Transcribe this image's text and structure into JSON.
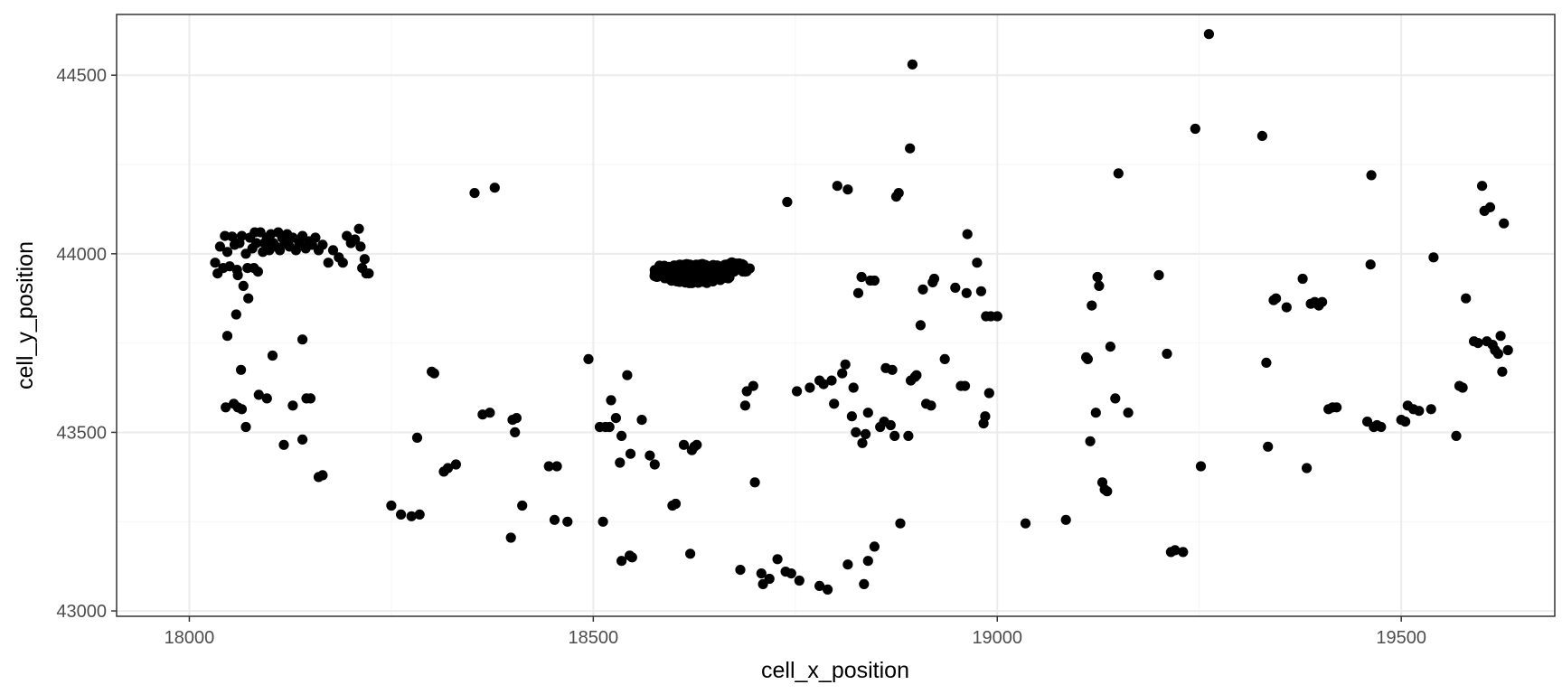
{
  "chart_data": {
    "type": "scatter",
    "title": "",
    "xlabel": "cell_x_position",
    "ylabel": "cell_y_position",
    "xlim": [
      17910,
      19690
    ],
    "ylim": [
      42985,
      44670
    ],
    "x_ticks": [
      18000,
      18500,
      19000,
      19500
    ],
    "x_tick_labels": [
      "18000",
      "18500",
      "19000",
      "19500"
    ],
    "y_ticks": [
      43000,
      43500,
      44000,
      44500
    ],
    "y_tick_labels": [
      "43000",
      "43500",
      "44000",
      "44500"
    ],
    "grid": true,
    "legend": "none",
    "colors": {
      "points": "#000000",
      "grid_major": "#ebebeb",
      "grid_minor": "#f5f5f5",
      "panel_border": "#333333"
    },
    "points": [
      [
        18035,
        43945
      ],
      [
        18038,
        44020
      ],
      [
        18042,
        43960
      ],
      [
        18044,
        44050
      ],
      [
        18047,
        44005
      ],
      [
        18050,
        43965
      ],
      [
        18053,
        44048
      ],
      [
        18056,
        44025
      ],
      [
        18059,
        43955
      ],
      [
        18062,
        44030
      ],
      [
        18065,
        44050
      ],
      [
        18067,
        43910
      ],
      [
        18070,
        44000
      ],
      [
        18072,
        43960
      ],
      [
        18075,
        44045
      ],
      [
        18078,
        44015
      ],
      [
        18080,
        43960
      ],
      [
        18083,
        44030
      ],
      [
        18085,
        43950
      ],
      [
        18088,
        44060
      ],
      [
        18091,
        44005
      ],
      [
        18093,
        44030
      ],
      [
        18096,
        44045
      ],
      [
        18099,
        44010
      ],
      [
        18101,
        44055
      ],
      [
        18104,
        44030
      ],
      [
        18107,
        44020
      ],
      [
        18110,
        44060
      ],
      [
        18112,
        44010
      ],
      [
        18115,
        44045
      ],
      [
        18118,
        44030
      ],
      [
        18121,
        44055
      ],
      [
        18124,
        44020
      ],
      [
        18128,
        44045
      ],
      [
        18132,
        44010
      ],
      [
        18136,
        44030
      ],
      [
        18140,
        44050
      ],
      [
        18144,
        44015
      ],
      [
        18148,
        44035
      ],
      [
        18152,
        44025
      ],
      [
        18156,
        44045
      ],
      [
        18160,
        44010
      ],
      [
        18165,
        44025
      ],
      [
        18172,
        43975
      ],
      [
        18178,
        44010
      ],
      [
        18185,
        43990
      ],
      [
        18190,
        43975
      ],
      [
        18195,
        44050
      ],
      [
        18200,
        44030
      ],
      [
        18205,
        44040
      ],
      [
        18210,
        44070
      ],
      [
        18212,
        44020
      ],
      [
        18214,
        43960
      ],
      [
        18217,
        43985
      ],
      [
        18219,
        43945
      ],
      [
        18222,
        43945
      ],
      [
        18032,
        43975
      ],
      [
        18060,
        43940
      ],
      [
        18081,
        44060
      ],
      [
        18140,
        43760
      ],
      [
        18047,
        43770
      ],
      [
        18058,
        43830
      ],
      [
        18064,
        43675
      ],
      [
        18073,
        43875
      ],
      [
        18096,
        43595
      ],
      [
        18103,
        43715
      ],
      [
        18086,
        43605
      ],
      [
        18060,
        43570
      ],
      [
        18045,
        43570
      ],
      [
        18070,
        43515
      ],
      [
        18055,
        43580
      ],
      [
        18065,
        43565
      ],
      [
        18117,
        43465
      ],
      [
        18128,
        43575
      ],
      [
        18140,
        43480
      ],
      [
        18145,
        43595
      ],
      [
        18150,
        43595
      ],
      [
        18160,
        43375
      ],
      [
        18165,
        43380
      ],
      [
        18250,
        43295
      ],
      [
        18262,
        43270
      ],
      [
        18275,
        43265
      ],
      [
        18285,
        43270
      ],
      [
        18282,
        43485
      ],
      [
        18300,
        43670
      ],
      [
        18303,
        43665
      ],
      [
        18315,
        43390
      ],
      [
        18320,
        43400
      ],
      [
        18330,
        43410
      ],
      [
        18353,
        44170
      ],
      [
        18363,
        43550
      ],
      [
        18372,
        43555
      ],
      [
        18378,
        44185
      ],
      [
        18400,
        43535
      ],
      [
        18405,
        43540
      ],
      [
        18403,
        43500
      ],
      [
        18398,
        43205
      ],
      [
        18412,
        43295
      ],
      [
        18445,
        43405
      ],
      [
        18452,
        43255
      ],
      [
        18455,
        43405
      ],
      [
        18468,
        43250
      ],
      [
        18494,
        43705
      ],
      [
        18508,
        43515
      ],
      [
        18515,
        43515
      ],
      [
        18520,
        43515
      ],
      [
        18512,
        43250
      ],
      [
        18522,
        43590
      ],
      [
        18528,
        43540
      ],
      [
        18533,
        43415
      ],
      [
        18535,
        43490
      ],
      [
        18542,
        43660
      ],
      [
        18546,
        43440
      ],
      [
        18545,
        43155
      ],
      [
        18548,
        43150
      ],
      [
        18535,
        43140
      ],
      [
        18560,
        43535
      ],
      [
        18570,
        43435
      ],
      [
        18576,
        43410
      ],
      [
        18598,
        43295
      ],
      [
        18602,
        43300
      ],
      [
        18612,
        43465
      ],
      [
        18622,
        43450
      ],
      [
        18625,
        43460
      ],
      [
        18628,
        43465
      ],
      [
        18620,
        43160
      ],
      [
        18688,
        43575
      ],
      [
        18690,
        43615
      ],
      [
        18698,
        43630
      ],
      [
        18700,
        43360
      ],
      [
        18682,
        43115
      ],
      [
        18708,
        43105
      ],
      [
        18710,
        43075
      ],
      [
        18718,
        43090
      ],
      [
        18728,
        43145
      ],
      [
        18738,
        43110
      ],
      [
        18745,
        43105
      ],
      [
        18755,
        43085
      ],
      [
        18740,
        44145
      ],
      [
        18752,
        43615
      ],
      [
        18768,
        43625
      ],
      [
        18780,
        43645
      ],
      [
        18785,
        43635
      ],
      [
        18795,
        43645
      ],
      [
        18798,
        43580
      ],
      [
        18802,
        44190
      ],
      [
        18808,
        43665
      ],
      [
        18812,
        43690
      ],
      [
        18815,
        44180
      ],
      [
        18820,
        43545
      ],
      [
        18822,
        43625
      ],
      [
        18825,
        43500
      ],
      [
        18828,
        43890
      ],
      [
        18832,
        43935
      ],
      [
        18833,
        43470
      ],
      [
        18837,
        43495
      ],
      [
        18840,
        43555
      ],
      [
        18843,
        43925
      ],
      [
        18848,
        43925
      ],
      [
        18855,
        43515
      ],
      [
        18860,
        43530
      ],
      [
        18862,
        43680
      ],
      [
        18868,
        43520
      ],
      [
        18870,
        43675
      ],
      [
        18873,
        43490
      ],
      [
        18875,
        44160
      ],
      [
        18878,
        44170
      ],
      [
        18880,
        43245
      ],
      [
        18890,
        43490
      ],
      [
        18893,
        43645
      ],
      [
        18898,
        43655
      ],
      [
        18900,
        43660
      ],
      [
        18892,
        44295
      ],
      [
        18895,
        44530
      ],
      [
        18905,
        43800
      ],
      [
        18908,
        43900
      ],
      [
        18912,
        43580
      ],
      [
        18918,
        43575
      ],
      [
        18920,
        43920
      ],
      [
        18922,
        43930
      ],
      [
        18935,
        43705
      ],
      [
        18948,
        43905
      ],
      [
        18955,
        43630
      ],
      [
        18960,
        43630
      ],
      [
        18962,
        43890
      ],
      [
        18963,
        44055
      ],
      [
        18975,
        43975
      ],
      [
        18980,
        43895
      ],
      [
        18983,
        43525
      ],
      [
        18985,
        43545
      ],
      [
        18986,
        43825
      ],
      [
        18990,
        43610
      ],
      [
        18992,
        43825
      ],
      [
        19000,
        43825
      ],
      [
        18848,
        43180
      ],
      [
        18840,
        43140
      ],
      [
        18835,
        43075
      ],
      [
        18815,
        43130
      ],
      [
        18790,
        43060
      ],
      [
        18780,
        43070
      ],
      [
        19035,
        43245
      ],
      [
        19085,
        43255
      ],
      [
        19110,
        43710
      ],
      [
        19112,
        43705
      ],
      [
        19115,
        43475
      ],
      [
        19117,
        43855
      ],
      [
        19122,
        43555
      ],
      [
        19124,
        43935
      ],
      [
        19126,
        43910
      ],
      [
        19130,
        43360
      ],
      [
        19133,
        43340
      ],
      [
        19136,
        43335
      ],
      [
        19140,
        43740
      ],
      [
        19146,
        43595
      ],
      [
        19150,
        44225
      ],
      [
        19162,
        43555
      ],
      [
        19200,
        43940
      ],
      [
        19210,
        43720
      ],
      [
        19215,
        43165
      ],
      [
        19220,
        43170
      ],
      [
        19230,
        43165
      ],
      [
        19245,
        44350
      ],
      [
        19252,
        43405
      ],
      [
        19262,
        44615
      ],
      [
        19328,
        44330
      ],
      [
        19333,
        43695
      ],
      [
        19335,
        43460
      ],
      [
        19342,
        43870
      ],
      [
        19345,
        43875
      ],
      [
        19358,
        43850
      ],
      [
        19378,
        43930
      ],
      [
        19383,
        43400
      ],
      [
        19388,
        43860
      ],
      [
        19393,
        43865
      ],
      [
        19398,
        43855
      ],
      [
        19402,
        43865
      ],
      [
        19410,
        43565
      ],
      [
        19415,
        43570
      ],
      [
        19420,
        43570
      ],
      [
        19458,
        43530
      ],
      [
        19462,
        43970
      ],
      [
        19463,
        44220
      ],
      [
        19466,
        43515
      ],
      [
        19470,
        43520
      ],
      [
        19475,
        43515
      ],
      [
        19500,
        43535
      ],
      [
        19505,
        43530
      ],
      [
        19508,
        43575
      ],
      [
        19515,
        43565
      ],
      [
        19522,
        43560
      ],
      [
        19537,
        43565
      ],
      [
        19540,
        43990
      ],
      [
        19568,
        43490
      ],
      [
        19572,
        43630
      ],
      [
        19576,
        43625
      ],
      [
        19580,
        43875
      ],
      [
        19590,
        43755
      ],
      [
        19595,
        43750
      ],
      [
        19600,
        44190
      ],
      [
        19603,
        44120
      ],
      [
        19606,
        43755
      ],
      [
        19610,
        44130
      ],
      [
        19613,
        43745
      ],
      [
        19616,
        43730
      ],
      [
        19620,
        43720
      ],
      [
        19623,
        43770
      ],
      [
        19625,
        43670
      ],
      [
        19627,
        44085
      ],
      [
        19632,
        43730
      ]
    ],
    "clusters": [
      {
        "x_center": 18628,
        "y_center": 43945,
        "x_spread": 46,
        "y_spread": 28,
        "count": 260
      },
      {
        "x_center": 18585,
        "y_center": 43950,
        "x_spread": 15,
        "y_spread": 18,
        "count": 30
      },
      {
        "x_center": 18672,
        "y_center": 43960,
        "x_spread": 22,
        "y_spread": 18,
        "count": 40
      }
    ]
  }
}
